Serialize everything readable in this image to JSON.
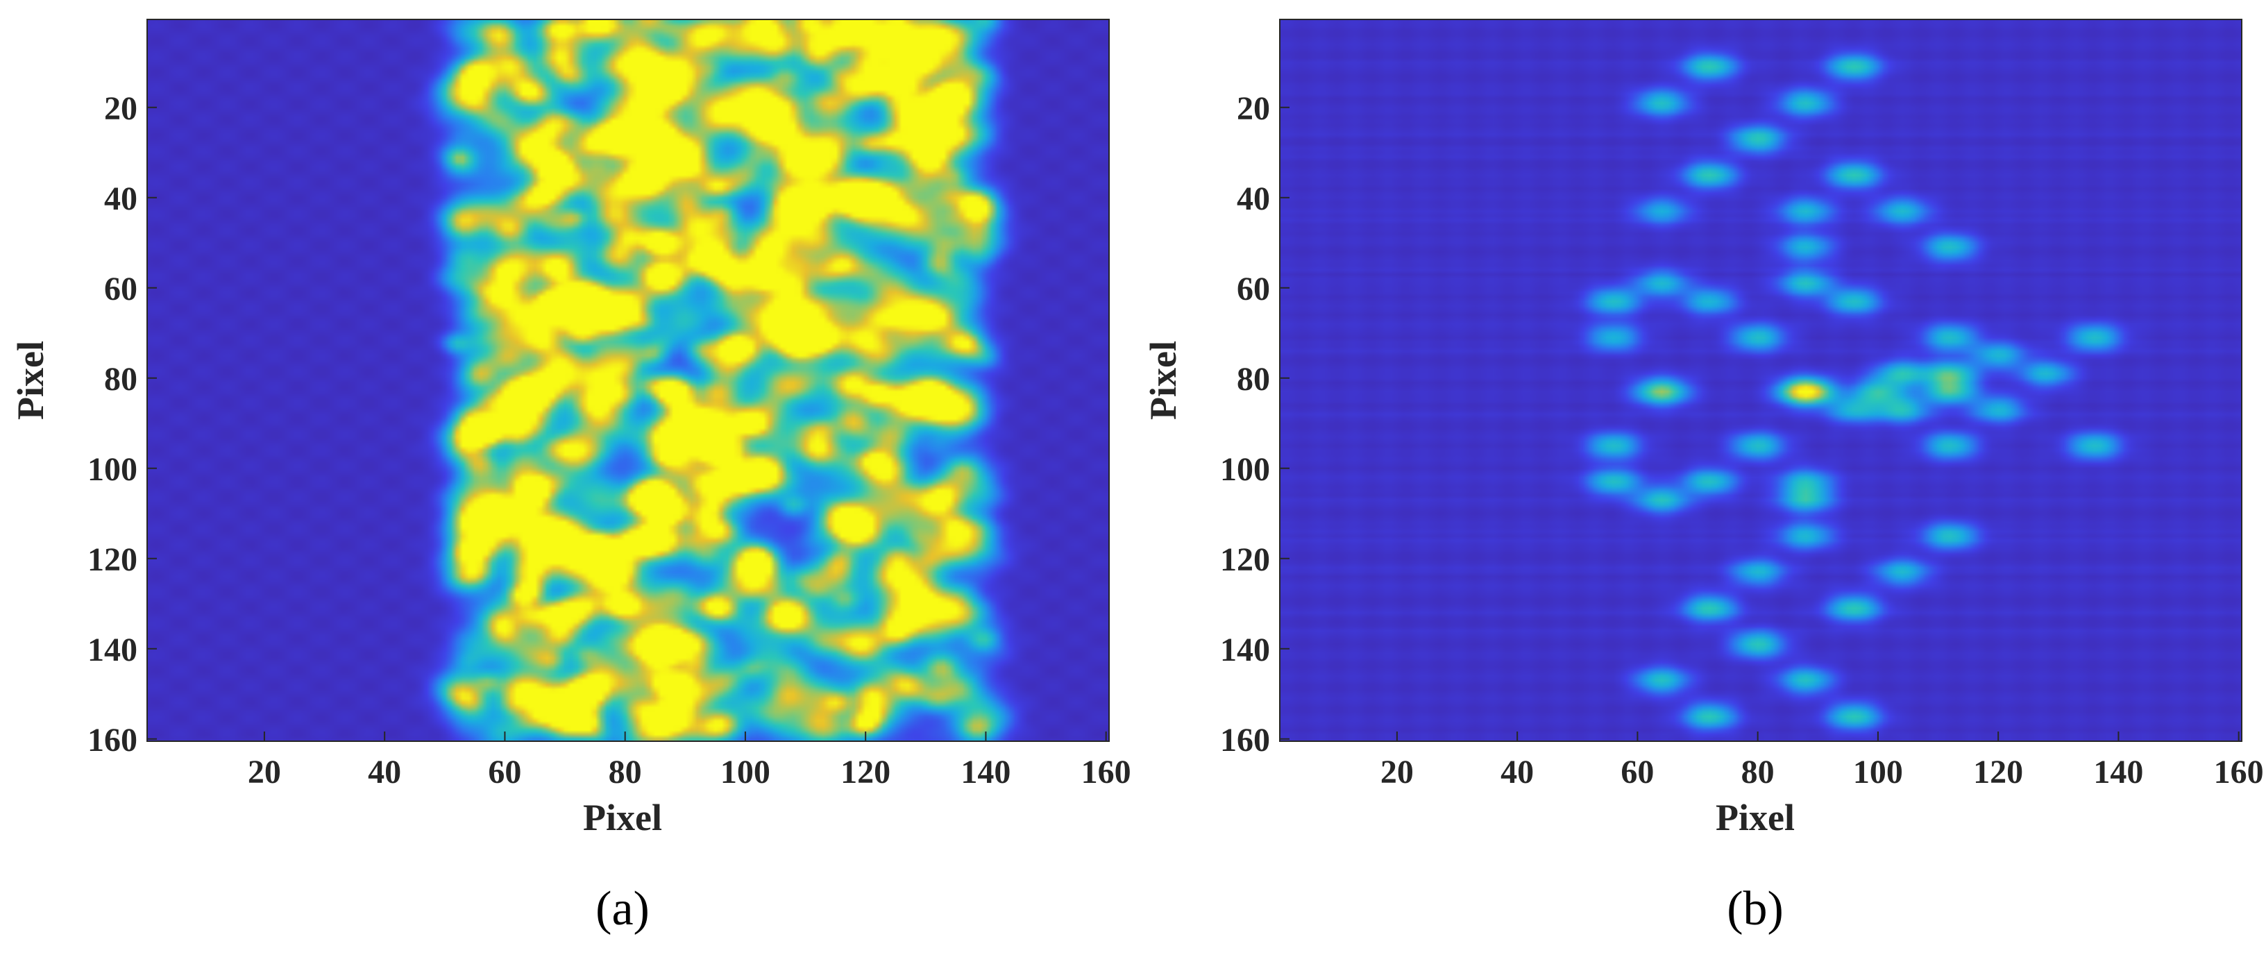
{
  "colors": {
    "background": "#3a2fc8",
    "colormap": [
      "#3e26a8",
      "#4040e8",
      "#2a7ff0",
      "#1aaee0",
      "#2bc8b6",
      "#8ec86a",
      "#e8c02c",
      "#f9fb14"
    ]
  },
  "chart_data": [
    {
      "type": "heatmap",
      "panel_label": "(a)",
      "xlabel": "Pixel",
      "ylabel": "Pixel",
      "xlim": [
        1,
        160
      ],
      "ylim": [
        1,
        160
      ],
      "y_reversed": true,
      "xticks": [
        20,
        40,
        60,
        80,
        100,
        120,
        140,
        160
      ],
      "yticks": [
        20,
        40,
        60,
        80,
        100,
        120,
        140,
        160
      ],
      "colormap": "parula",
      "grid": false,
      "description_band": [
        52,
        140
      ],
      "peaks": [
        {
          "x": 86,
          "y": 50,
          "v": 0.95
        },
        {
          "x": 88,
          "y": 83,
          "v": 1.0
        },
        {
          "x": 64,
          "y": 83,
          "v": 0.65
        },
        {
          "x": 86,
          "y": 26,
          "v": 0.6
        },
        {
          "x": 86,
          "y": 58,
          "v": 0.6
        },
        {
          "x": 96,
          "y": 56,
          "v": 0.55
        },
        {
          "x": 112,
          "y": 71,
          "v": 0.6
        },
        {
          "x": 96,
          "y": 96,
          "v": 0.65
        },
        {
          "x": 112,
          "y": 96,
          "v": 0.6
        },
        {
          "x": 84,
          "y": 105,
          "v": 0.7
        },
        {
          "x": 88,
          "y": 109,
          "v": 0.5
        },
        {
          "x": 96,
          "y": 114,
          "v": 0.55
        },
        {
          "x": 86,
          "y": 116,
          "v": 0.5
        },
        {
          "x": 72,
          "y": 131,
          "v": 0.65
        },
        {
          "x": 96,
          "y": 131,
          "v": 0.7
        },
        {
          "x": 86,
          "y": 139,
          "v": 0.6
        },
        {
          "x": 96,
          "y": 157,
          "v": 0.65
        },
        {
          "x": 72,
          "y": 157,
          "v": 0.5
        },
        {
          "x": 64,
          "y": 108,
          "v": 0.45
        },
        {
          "x": 76,
          "y": 2,
          "v": 0.5
        }
      ]
    },
    {
      "type": "heatmap",
      "panel_label": "(b)",
      "xlabel": "Pixel",
      "ylabel": "Pixel",
      "xlim": [
        1,
        160
      ],
      "ylim": [
        1,
        160
      ],
      "y_reversed": true,
      "xticks": [
        20,
        40,
        60,
        80,
        100,
        120,
        140,
        160
      ],
      "yticks": [
        20,
        40,
        60,
        80,
        100,
        120,
        140,
        160
      ],
      "colormap": "parula",
      "grid": false,
      "peaks": [
        {
          "x": 72,
          "y": 11,
          "v": 0.5
        },
        {
          "x": 96,
          "y": 11,
          "v": 0.5
        },
        {
          "x": 64,
          "y": 19,
          "v": 0.45
        },
        {
          "x": 88,
          "y": 19,
          "v": 0.45
        },
        {
          "x": 80,
          "y": 27,
          "v": 0.5
        },
        {
          "x": 72,
          "y": 35,
          "v": 0.5
        },
        {
          "x": 96,
          "y": 35,
          "v": 0.5
        },
        {
          "x": 88,
          "y": 43,
          "v": 0.4
        },
        {
          "x": 104,
          "y": 43,
          "v": 0.4
        },
        {
          "x": 64,
          "y": 43,
          "v": 0.35
        },
        {
          "x": 88,
          "y": 51,
          "v": 0.4
        },
        {
          "x": 112,
          "y": 51,
          "v": 0.45
        },
        {
          "x": 64,
          "y": 59,
          "v": 0.4
        },
        {
          "x": 88,
          "y": 59,
          "v": 0.45
        },
        {
          "x": 56,
          "y": 63,
          "v": 0.45
        },
        {
          "x": 72,
          "y": 63,
          "v": 0.4
        },
        {
          "x": 96,
          "y": 63,
          "v": 0.45
        },
        {
          "x": 56,
          "y": 71,
          "v": 0.4
        },
        {
          "x": 80,
          "y": 71,
          "v": 0.45
        },
        {
          "x": 112,
          "y": 71,
          "v": 0.45
        },
        {
          "x": 136,
          "y": 71,
          "v": 0.45
        },
        {
          "x": 120,
          "y": 75,
          "v": 0.4
        },
        {
          "x": 104,
          "y": 79,
          "v": 0.45
        },
        {
          "x": 112,
          "y": 79,
          "v": 0.5
        },
        {
          "x": 128,
          "y": 79,
          "v": 0.4
        },
        {
          "x": 64,
          "y": 83,
          "v": 0.65
        },
        {
          "x": 88,
          "y": 83,
          "v": 1.0
        },
        {
          "x": 112,
          "y": 83,
          "v": 0.5
        },
        {
          "x": 100,
          "y": 83,
          "v": 0.45
        },
        {
          "x": 104,
          "y": 87,
          "v": 0.45
        },
        {
          "x": 120,
          "y": 87,
          "v": 0.4
        },
        {
          "x": 96,
          "y": 87,
          "v": 0.4
        },
        {
          "x": 56,
          "y": 95,
          "v": 0.45
        },
        {
          "x": 80,
          "y": 95,
          "v": 0.45
        },
        {
          "x": 112,
          "y": 95,
          "v": 0.45
        },
        {
          "x": 136,
          "y": 95,
          "v": 0.45
        },
        {
          "x": 56,
          "y": 103,
          "v": 0.45
        },
        {
          "x": 72,
          "y": 103,
          "v": 0.45
        },
        {
          "x": 88,
          "y": 103,
          "v": 0.4
        },
        {
          "x": 64,
          "y": 107,
          "v": 0.45
        },
        {
          "x": 88,
          "y": 107,
          "v": 0.45
        },
        {
          "x": 88,
          "y": 115,
          "v": 0.4
        },
        {
          "x": 112,
          "y": 115,
          "v": 0.45
        },
        {
          "x": 80,
          "y": 123,
          "v": 0.4
        },
        {
          "x": 104,
          "y": 123,
          "v": 0.4
        },
        {
          "x": 72,
          "y": 131,
          "v": 0.5
        },
        {
          "x": 96,
          "y": 131,
          "v": 0.5
        },
        {
          "x": 80,
          "y": 139,
          "v": 0.5
        },
        {
          "x": 64,
          "y": 147,
          "v": 0.45
        },
        {
          "x": 88,
          "y": 147,
          "v": 0.45
        },
        {
          "x": 72,
          "y": 155,
          "v": 0.5
        },
        {
          "x": 96,
          "y": 155,
          "v": 0.5
        }
      ]
    }
  ]
}
